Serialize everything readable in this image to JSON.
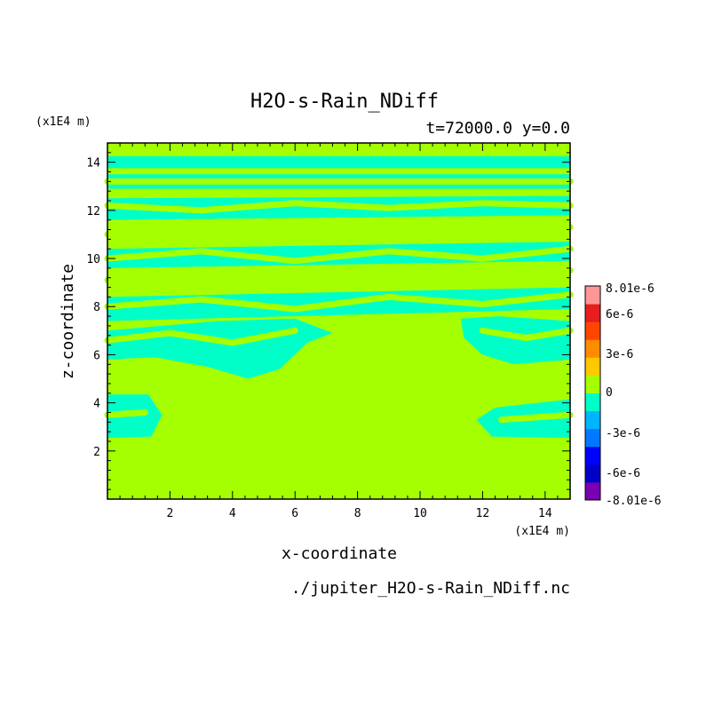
{
  "chart_data": {
    "type": "heatmap",
    "title": "H2O-s-Rain_NDiff",
    "subtitle": "t=72000.0 y=0.0",
    "xlabel": "x-coordinate",
    "ylabel": "z-coordinate",
    "x_unit": "(x1E4 m)",
    "y_unit": "(x1E4 m)",
    "file_label": "./jupiter_H2O-s-Rain_NDiff.nc",
    "xlim": [
      0,
      14.8
    ],
    "ylim": [
      0,
      14.8
    ],
    "xticks": [
      2,
      4,
      6,
      8,
      10,
      12,
      14
    ],
    "yticks": [
      2,
      4,
      6,
      8,
      10,
      12,
      14
    ],
    "xtick_labels": [
      "2",
      "4",
      "6",
      "8",
      "10",
      "12",
      "14"
    ],
    "ytick_labels": [
      "2",
      "4",
      "6",
      "8",
      "10",
      "12",
      "14"
    ],
    "field_colors": {
      "zero_band": "#a5ff00",
      "negative_small_band": "#00ffc8"
    },
    "negative_regions": [
      {
        "name": "top-layer",
        "polygon": [
          [
            0,
            13.75
          ],
          [
            14.8,
            13.75
          ],
          [
            14.8,
            14.25
          ],
          [
            0,
            14.25
          ]
        ]
      },
      {
        "name": "upper-layer",
        "polygon": [
          [
            0,
            12.9
          ],
          [
            14.8,
            12.9
          ],
          [
            14.8,
            13.5
          ],
          [
            0,
            13.5
          ]
        ]
      },
      {
        "name": "layer-12",
        "polygon": [
          [
            0,
            11.6
          ],
          [
            14.8,
            11.8
          ],
          [
            14.8,
            12.6
          ],
          [
            0,
            12.5
          ]
        ]
      },
      {
        "name": "layer-10",
        "polygon": [
          [
            0,
            9.6
          ],
          [
            14.8,
            9.9
          ],
          [
            14.8,
            10.7
          ],
          [
            0,
            10.4
          ]
        ]
      },
      {
        "name": "layer-8",
        "polygon": [
          [
            0,
            7.4
          ],
          [
            14.8,
            7.9
          ],
          [
            14.8,
            8.8
          ],
          [
            0,
            8.4
          ]
        ]
      },
      {
        "name": "lower-left-mid",
        "polygon": [
          [
            0,
            5.8
          ],
          [
            1.5,
            5.9
          ],
          [
            3.2,
            5.5
          ],
          [
            4.5,
            5.0
          ],
          [
            5.5,
            5.4
          ],
          [
            6.4,
            6.5
          ],
          [
            7.2,
            6.9
          ],
          [
            6.0,
            7.5
          ],
          [
            3.5,
            7.4
          ],
          [
            0,
            7.0
          ]
        ]
      },
      {
        "name": "lower-right-mid",
        "polygon": [
          [
            11.4,
            6.7
          ],
          [
            12.0,
            6.0
          ],
          [
            13.0,
            5.6
          ],
          [
            14.8,
            5.8
          ],
          [
            14.8,
            7.4
          ],
          [
            12.5,
            7.6
          ],
          [
            11.3,
            7.5
          ]
        ]
      },
      {
        "name": "left-blob",
        "polygon": [
          [
            0,
            2.55
          ],
          [
            1.4,
            2.6
          ],
          [
            1.75,
            3.5
          ],
          [
            1.3,
            4.35
          ],
          [
            0,
            4.35
          ]
        ]
      },
      {
        "name": "right-blob",
        "polygon": [
          [
            14.8,
            2.55
          ],
          [
            12.3,
            2.6
          ],
          [
            11.8,
            3.3
          ],
          [
            12.4,
            3.8
          ],
          [
            14.8,
            4.15
          ]
        ]
      }
    ],
    "zero_stripes": [
      [
        [
          0,
          13.2
        ],
        [
          14.8,
          13.2
        ]
      ],
      [
        [
          0,
          12.2
        ],
        [
          3,
          12.0
        ],
        [
          6,
          12.3
        ],
        [
          9,
          12.1
        ],
        [
          12,
          12.3
        ],
        [
          14.8,
          12.2
        ]
      ],
      [
        [
          0,
          11.0
        ],
        [
          3,
          11.3
        ],
        [
          6,
          11.0
        ],
        [
          9,
          11.4
        ],
        [
          12,
          11.1
        ],
        [
          14.8,
          11.3
        ]
      ],
      [
        [
          0,
          10.0
        ],
        [
          3,
          10.3
        ],
        [
          6,
          9.9
        ],
        [
          9,
          10.3
        ],
        [
          12,
          10.0
        ],
        [
          14.8,
          10.4
        ]
      ],
      [
        [
          0,
          9.1
        ],
        [
          3,
          9.4
        ],
        [
          6,
          9.0
        ],
        [
          9,
          9.4
        ],
        [
          12,
          9.2
        ],
        [
          14.8,
          9.5
        ]
      ],
      [
        [
          0,
          8.0
        ],
        [
          3,
          8.3
        ],
        [
          6,
          7.9
        ],
        [
          9,
          8.4
        ],
        [
          12,
          8.1
        ],
        [
          14.8,
          8.5
        ]
      ],
      [
        [
          0,
          6.6
        ],
        [
          2,
          6.9
        ],
        [
          4,
          6.5
        ],
        [
          6,
          7.0
        ]
      ],
      [
        [
          12,
          7.0
        ],
        [
          13.4,
          6.7
        ],
        [
          14.8,
          7.0
        ]
      ],
      [
        [
          0,
          3.5
        ],
        [
          1.2,
          3.6
        ]
      ],
      [
        [
          12.6,
          3.3
        ],
        [
          14.8,
          3.5
        ]
      ]
    ],
    "colorbar": {
      "ticks": [
        "8.01e-6",
        "6e-6",
        "3e-6",
        "0",
        "-3e-6",
        "-6e-6",
        "-8.01e-6"
      ],
      "colors": [
        "#7a00b0",
        "#0000c8",
        "#0000ff",
        "#0078ff",
        "#00b4ff",
        "#00ffc8",
        "#a5ff00",
        "#ffc800",
        "#ff8c00",
        "#ff4600",
        "#e61e1e",
        "#ff9696"
      ]
    }
  }
}
